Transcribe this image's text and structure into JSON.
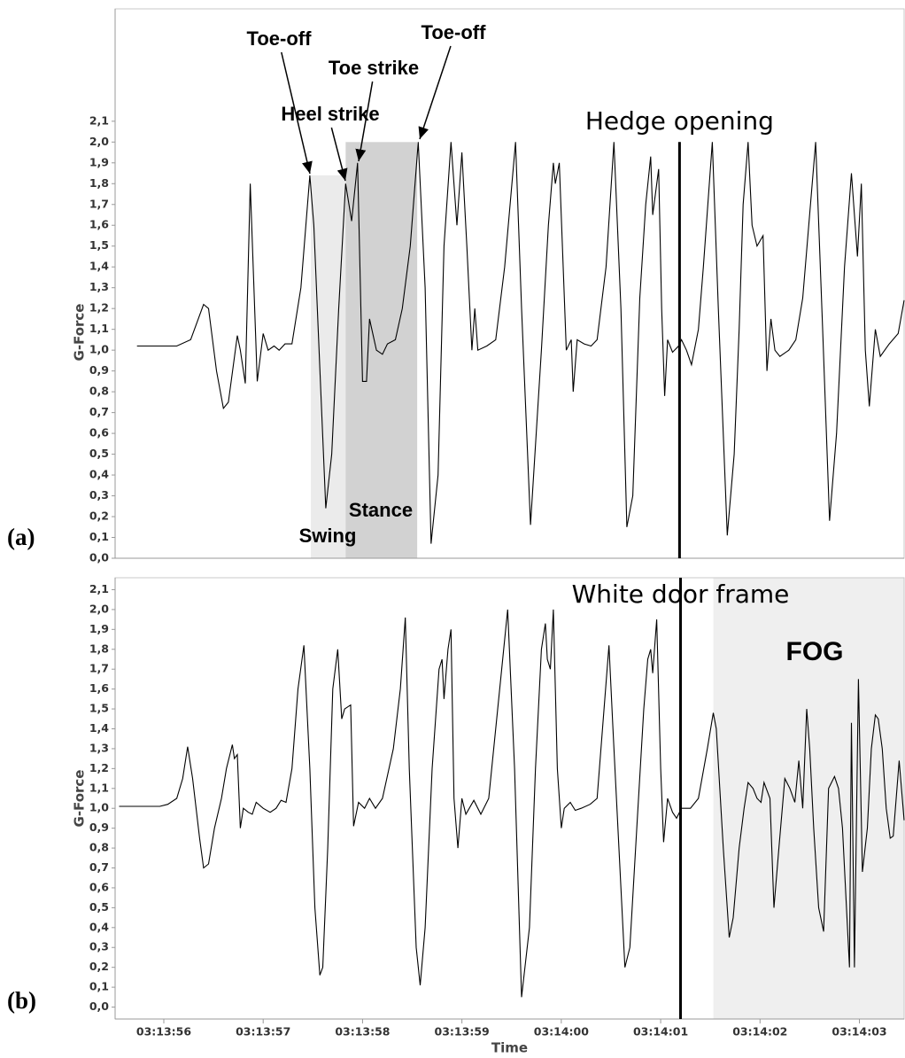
{
  "chart_data": [
    {
      "type": "line",
      "panel_label": "(a)",
      "y_label": "G-Force",
      "color": "#000000",
      "x": [
        11635.73,
        11635.91,
        11636.13,
        11636.27,
        11636.4,
        11636.45,
        11636.53,
        11636.6,
        11636.65,
        11636.74,
        11636.77,
        11636.82,
        11636.87,
        11636.94,
        11637.0,
        11637.05,
        11637.11,
        11637.16,
        11637.22,
        11637.29,
        11637.38,
        11637.47,
        11637.51,
        11637.58,
        11637.63,
        11637.69,
        11637.76,
        11637.83,
        11637.89,
        11637.95,
        11638.0,
        11638.04,
        11638.07,
        11638.14,
        11638.2,
        11638.25,
        11638.33,
        11638.4,
        11638.48,
        11638.56,
        11638.63,
        11638.69,
        11638.76,
        11638.82,
        11638.89,
        11638.95,
        11639.0,
        11639.05,
        11639.1,
        11639.13,
        11639.16,
        11639.25,
        11639.34,
        11639.43,
        11639.54,
        11639.6,
        11639.69,
        11639.8,
        11639.87,
        11639.92,
        11639.94,
        11639.98,
        11640.05,
        11640.1,
        11640.12,
        11640.16,
        11640.23,
        11640.3,
        11640.36,
        11640.45,
        11640.53,
        11640.6,
        11640.66,
        11640.72,
        11640.79,
        11640.85,
        11640.9,
        11640.92,
        11640.98,
        11641.01,
        11641.04,
        11641.07,
        11641.12,
        11641.18,
        11641.21,
        11641.26,
        11641.31,
        11641.38,
        11641.43,
        11641.52,
        11641.58,
        11641.67,
        11641.74,
        11641.79,
        11641.83,
        11641.88,
        11641.92,
        11641.97,
        11642.03,
        11642.07,
        11642.11,
        11642.15,
        11642.2,
        11642.29,
        11642.36,
        11642.43,
        11642.56,
        11642.63,
        11642.7,
        11642.77,
        11642.85,
        11642.92,
        11642.98,
        11643.02,
        11643.06,
        11643.1,
        11643.16,
        11643.21,
        11643.3,
        11643.39,
        11643.45
      ],
      "values": [
        1.02,
        1.02,
        1.02,
        1.05,
        1.22,
        1.2,
        0.9,
        0.72,
        0.75,
        1.07,
        1.0,
        0.84,
        1.8,
        0.85,
        1.08,
        1.0,
        1.02,
        1.0,
        1.03,
        1.03,
        1.3,
        1.84,
        1.6,
        0.8,
        0.24,
        0.5,
        1.2,
        1.8,
        1.62,
        1.9,
        0.85,
        0.85,
        1.15,
        1.0,
        0.98,
        1.03,
        1.05,
        1.2,
        1.5,
        2.0,
        1.3,
        0.07,
        0.4,
        1.5,
        2.0,
        1.6,
        1.95,
        1.5,
        1.0,
        1.2,
        1.0,
        1.02,
        1.05,
        1.4,
        2.0,
        1.2,
        0.16,
        1.0,
        1.6,
        1.9,
        1.8,
        1.9,
        1.0,
        1.05,
        0.8,
        1.05,
        1.03,
        1.02,
        1.05,
        1.4,
        2.0,
        1.2,
        0.15,
        0.3,
        1.25,
        1.7,
        1.93,
        1.65,
        1.87,
        1.2,
        0.78,
        1.05,
        0.99,
        1.02,
        1.05,
        1.0,
        0.93,
        1.1,
        1.4,
        2.0,
        1.2,
        0.11,
        0.5,
        1.1,
        1.7,
        2.0,
        1.6,
        1.5,
        1.55,
        0.9,
        1.15,
        1.0,
        0.97,
        1.0,
        1.05,
        1.25,
        2.0,
        1.1,
        0.18,
        0.6,
        1.4,
        1.85,
        1.45,
        1.8,
        1.0,
        0.73,
        1.1,
        0.97,
        1.03,
        1.08,
        1.24
      ],
      "xlim": [
        11635.51,
        11643.45
      ],
      "ylim": [
        0,
        2.64
      ],
      "yticks": [
        {
          "value": 0,
          "label": "0,0"
        },
        {
          "value": 0.1,
          "label": "0,1"
        },
        {
          "value": 0.2,
          "label": "0,2"
        },
        {
          "value": 0.3,
          "label": "0,3"
        },
        {
          "value": 0.4,
          "label": "0,4"
        },
        {
          "value": 0.5,
          "label": "0,5"
        },
        {
          "value": 0.6,
          "label": "0,6"
        },
        {
          "value": 0.7,
          "label": "0,7"
        },
        {
          "value": 0.8,
          "label": "0,8"
        },
        {
          "value": 0.9,
          "label": "0,9"
        },
        {
          "value": 1.0,
          "label": "1,0"
        },
        {
          "value": 1.1,
          "label": "1,1"
        },
        {
          "value": 1.2,
          "label": "1,2"
        },
        {
          "value": 1.3,
          "label": "1,3"
        },
        {
          "value": 1.4,
          "label": "1,4"
        },
        {
          "value": 1.5,
          "label": "1,5"
        },
        {
          "value": 1.6,
          "label": "1,6"
        },
        {
          "value": 1.7,
          "label": "1,7"
        },
        {
          "value": 1.8,
          "label": "1,8"
        },
        {
          "value": 1.9,
          "label": "1,9"
        },
        {
          "value": 2.0,
          "label": "2,0"
        },
        {
          "value": 2.1,
          "label": "2,1"
        }
      ],
      "regions": [
        {
          "label": "Swing",
          "x": [
            11637.48,
            11637.83
          ],
          "top": 1.84,
          "color": "#ebebeb"
        },
        {
          "label": "Stance",
          "x": [
            11637.83,
            11638.55
          ],
          "top": 2.0,
          "color": "#d2d2d2"
        }
      ],
      "vline": 11641.19,
      "vline_label": "Hedge opening",
      "annotations": [
        "Toe-off",
        "Heel strike",
        "Toe strike",
        "Toe-off"
      ]
    },
    {
      "type": "line",
      "panel_label": "(b)",
      "y_label": "G-Force",
      "x_label": "Time",
      "color": "#000000",
      "x": [
        11635.55,
        11635.69,
        11635.82,
        11635.96,
        11636.04,
        11636.13,
        11636.19,
        11636.24,
        11636.29,
        11636.36,
        11636.4,
        11636.45,
        11636.51,
        11636.58,
        11636.63,
        11636.69,
        11636.71,
        11636.74,
        11636.77,
        11636.8,
        11636.85,
        11636.89,
        11636.93,
        11637.0,
        11637.07,
        11637.13,
        11637.18,
        11637.23,
        11637.29,
        11637.35,
        11637.41,
        11637.47,
        11637.52,
        11637.57,
        11637.6,
        11637.65,
        11637.7,
        11637.75,
        11637.79,
        11637.82,
        11637.88,
        11637.91,
        11637.96,
        11638.02,
        11638.07,
        11638.13,
        11638.2,
        11638.31,
        11638.38,
        11638.43,
        11638.47,
        11638.54,
        11638.58,
        11638.63,
        11638.7,
        11638.77,
        11638.8,
        11638.82,
        11638.86,
        11638.89,
        11638.92,
        11638.96,
        11639.0,
        11639.04,
        11639.12,
        11639.19,
        11639.27,
        11639.38,
        11639.46,
        11639.53,
        11639.6,
        11639.68,
        11639.74,
        11639.8,
        11639.84,
        11639.86,
        11639.89,
        11639.92,
        11639.96,
        11640.0,
        11640.03,
        11640.09,
        11640.14,
        11640.2,
        11640.29,
        11640.36,
        11640.48,
        11640.52,
        11640.64,
        11640.69,
        11640.76,
        11640.83,
        11640.87,
        11640.9,
        11640.92,
        11640.96,
        11641.0,
        11641.03,
        11641.07,
        11641.12,
        11641.16,
        11641.21,
        11641.3,
        11641.38,
        11641.47,
        11641.53,
        11641.56,
        11641.63,
        11641.69,
        11641.73,
        11641.79,
        11641.84,
        11641.88,
        11641.93,
        11641.97,
        11642.01,
        11642.04,
        11642.1,
        11642.14,
        11642.19,
        11642.25,
        11642.3,
        11642.35,
        11642.39,
        11642.43,
        11642.47,
        11642.5,
        11642.54,
        11642.59,
        11642.64,
        11642.69,
        11642.75,
        11642.79,
        11642.83,
        11642.87,
        11642.9,
        11642.92,
        11642.95,
        11642.99,
        11643.03,
        11643.08,
        11643.12,
        11643.16,
        11643.19,
        11643.23,
        11643.27,
        11643.31,
        11643.34,
        11643.4,
        11643.45
      ],
      "values": [
        1.01,
        1.01,
        1.01,
        1.01,
        1.02,
        1.05,
        1.15,
        1.31,
        1.15,
        0.85,
        0.7,
        0.72,
        0.9,
        1.05,
        1.2,
        1.32,
        1.25,
        1.27,
        0.9,
        1.0,
        0.98,
        0.97,
        1.03,
        1.0,
        0.98,
        1.0,
        1.04,
        1.03,
        1.2,
        1.6,
        1.82,
        1.2,
        0.5,
        0.16,
        0.2,
        0.8,
        1.6,
        1.8,
        1.45,
        1.5,
        1.52,
        0.91,
        1.03,
        1.0,
        1.05,
        1.0,
        1.05,
        1.3,
        1.6,
        1.96,
        1.2,
        0.3,
        0.11,
        0.4,
        1.2,
        1.7,
        1.75,
        1.55,
        1.8,
        1.9,
        1.05,
        0.8,
        1.05,
        0.97,
        1.04,
        0.97,
        1.05,
        1.6,
        2.0,
        1.2,
        0.05,
        0.4,
        1.2,
        1.8,
        1.93,
        1.75,
        1.7,
        2.0,
        1.2,
        0.9,
        1.0,
        1.03,
        0.99,
        1.0,
        1.02,
        1.05,
        1.82,
        1.4,
        0.2,
        0.3,
        0.9,
        1.5,
        1.75,
        1.8,
        1.68,
        1.95,
        1.2,
        0.83,
        1.05,
        0.98,
        0.95,
        1.0,
        1.0,
        1.05,
        1.3,
        1.48,
        1.4,
        0.8,
        0.35,
        0.45,
        0.8,
        1.0,
        1.13,
        1.1,
        1.05,
        1.03,
        1.13,
        1.05,
        0.5,
        0.8,
        1.15,
        1.1,
        1.03,
        1.24,
        1.0,
        1.5,
        1.3,
        0.9,
        0.5,
        0.38,
        1.1,
        1.16,
        1.1,
        0.9,
        0.5,
        0.2,
        1.43,
        0.2,
        1.65,
        0.68,
        0.9,
        1.3,
        1.47,
        1.45,
        1.3,
        1.0,
        0.85,
        0.86,
        1.24,
        0.94
      ],
      "xlim": [
        11635.51,
        11643.45
      ],
      "ylim": [
        -0.06,
        2.16
      ],
      "xticks": [
        {
          "value": 11636,
          "label": "03:13:56"
        },
        {
          "value": 11637,
          "label": "03:13:57"
        },
        {
          "value": 11638,
          "label": "03:13:58"
        },
        {
          "value": 11639,
          "label": "03:13:59"
        },
        {
          "value": 11640,
          "label": "03:14:00"
        },
        {
          "value": 11641,
          "label": "03:14:01"
        },
        {
          "value": 11642,
          "label": "03:14:02"
        },
        {
          "value": 11643,
          "label": "03:14:03"
        }
      ],
      "yticks": [
        {
          "value": 0,
          "label": "0,0"
        },
        {
          "value": 0.1,
          "label": "0,1"
        },
        {
          "value": 0.2,
          "label": "0,2"
        },
        {
          "value": 0.3,
          "label": "0,3"
        },
        {
          "value": 0.4,
          "label": "0,4"
        },
        {
          "value": 0.5,
          "label": "0,5"
        },
        {
          "value": 0.6,
          "label": "0,6"
        },
        {
          "value": 0.7,
          "label": "0,7"
        },
        {
          "value": 0.8,
          "label": "0,8"
        },
        {
          "value": 0.9,
          "label": "0,9"
        },
        {
          "value": 1.0,
          "label": "1,0"
        },
        {
          "value": 1.1,
          "label": "1,1"
        },
        {
          "value": 1.2,
          "label": "1,2"
        },
        {
          "value": 1.3,
          "label": "1,3"
        },
        {
          "value": 1.4,
          "label": "1,4"
        },
        {
          "value": 1.5,
          "label": "1,5"
        },
        {
          "value": 1.6,
          "label": "1,6"
        },
        {
          "value": 1.7,
          "label": "1,7"
        },
        {
          "value": 1.8,
          "label": "1,8"
        },
        {
          "value": 1.9,
          "label": "1,9"
        },
        {
          "value": 2.0,
          "label": "2,0"
        },
        {
          "value": 2.1,
          "label": "2,1"
        }
      ],
      "regions": [
        {
          "label": "FOG",
          "x": [
            11641.53,
            11643.45
          ],
          "color": "#efefef"
        }
      ],
      "vline": 11641.2,
      "vline_label": "White door frame"
    }
  ]
}
